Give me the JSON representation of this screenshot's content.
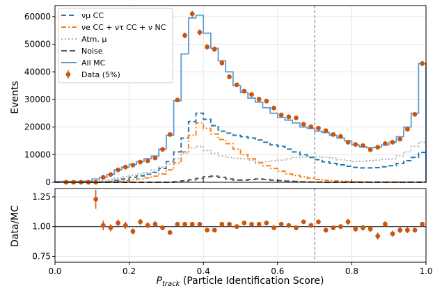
{
  "chart_data": [
    {
      "type": "line",
      "panel": "main",
      "ylabel": "Events",
      "xlim": [
        0,
        1
      ],
      "ylim": [
        0,
        64000
      ],
      "yticks": [
        0,
        10000,
        20000,
        30000,
        40000,
        50000,
        60000
      ],
      "grid": true,
      "legend_placement": "top-left",
      "threshold_line_x": 0.7,
      "colors": {
        "numu": "#1f77b4",
        "nue": "#ff7f0e",
        "atm": "#b0b0b0",
        "noise": "#555555",
        "allmc": "#5b9bd5",
        "data": "#c9550f"
      },
      "legend": [
        {
          "key": "numu",
          "label": "νμ CC",
          "style": "dashed"
        },
        {
          "key": "nue",
          "label": "νe CC + ντ CC + ν NC",
          "style": "dashdot"
        },
        {
          "key": "atm",
          "label": "Atm. μ",
          "style": "dotted"
        },
        {
          "key": "noise",
          "label": "Noise",
          "style": "dashed"
        },
        {
          "key": "allmc",
          "label": "All MC",
          "style": "solid"
        },
        {
          "key": "data",
          "label": "Data (5%)",
          "style": "marker"
        }
      ],
      "bin_edges": [
        0,
        0.02,
        0.04,
        0.06,
        0.08,
        0.1,
        0.12,
        0.14,
        0.16,
        0.18,
        0.2,
        0.22,
        0.24,
        0.26,
        0.28,
        0.3,
        0.32,
        0.34,
        0.36,
        0.38,
        0.4,
        0.42,
        0.44,
        0.46,
        0.48,
        0.5,
        0.52,
        0.54,
        0.56,
        0.58,
        0.6,
        0.62,
        0.64,
        0.66,
        0.68,
        0.7,
        0.72,
        0.74,
        0.76,
        0.78,
        0.8,
        0.82,
        0.84,
        0.86,
        0.88,
        0.9,
        0.92,
        0.94,
        0.96,
        0.98,
        1.0
      ],
      "series": [
        {
          "key": "numu",
          "values": [
            0,
            0,
            0,
            0,
            0,
            0,
            100,
            300,
            700,
            1200,
            1800,
            2300,
            2900,
            3600,
            5000,
            7500,
            11000,
            16000,
            22000,
            25000,
            22800,
            20500,
            18500,
            17800,
            17000,
            16500,
            16000,
            15300,
            14500,
            13500,
            13000,
            12000,
            11000,
            10000,
            9000,
            8200,
            7400,
            6800,
            6300,
            5800,
            5400,
            5200,
            5200,
            5300,
            5600,
            6000,
            6800,
            7800,
            9000,
            10800
          ]
        },
        {
          "key": "nue",
          "values": [
            0,
            0,
            0,
            0,
            0,
            0,
            50,
            150,
            300,
            600,
            900,
            1200,
            1600,
            2200,
            3000,
            4500,
            7000,
            11000,
            17000,
            21500,
            19500,
            17500,
            15500,
            14000,
            12000,
            10000,
            8500,
            7000,
            6000,
            5000,
            4000,
            3000,
            2500,
            2000,
            1500,
            1000,
            700,
            500,
            400,
            300,
            200,
            150,
            100,
            100,
            100,
            100,
            100,
            100,
            100,
            100
          ]
        },
        {
          "key": "atm",
          "values": [
            300,
            300,
            300,
            300,
            400,
            500,
            700,
            1000,
            1500,
            2000,
            2500,
            3000,
            3500,
            4500,
            5500,
            6500,
            8500,
            10500,
            12500,
            13000,
            11500,
            10500,
            9500,
            9000,
            8700,
            8500,
            8000,
            7500,
            7500,
            7800,
            8000,
            8500,
            9000,
            9200,
            9300,
            9300,
            9100,
            8800,
            8200,
            7800,
            7500,
            7600,
            7800,
            8000,
            8300,
            8500,
            9500,
            11000,
            13000,
            14500
          ]
        },
        {
          "key": "noise",
          "values": [
            0,
            0,
            0,
            0,
            0,
            0,
            0,
            0,
            0,
            0,
            0,
            0,
            0,
            0,
            0,
            0,
            200,
            500,
            900,
            1400,
            2000,
            2200,
            1800,
            1200,
            800,
            800,
            1000,
            1200,
            1000,
            800,
            600,
            400,
            300,
            200,
            100,
            50,
            0,
            0,
            0,
            0,
            0,
            0,
            0,
            0,
            0,
            0,
            0,
            0,
            0,
            0
          ]
        },
        {
          "key": "allmc",
          "values": [
            300,
            300,
            300,
            300,
            400,
            1200,
            1800,
            2800,
            4500,
            5500,
            6500,
            7500,
            8500,
            9500,
            12000,
            17000,
            29500,
            46500,
            59500,
            60500,
            54000,
            48500,
            44000,
            40000,
            35000,
            32500,
            30500,
            29000,
            27000,
            25000,
            23500,
            22500,
            21500,
            20000,
            19500,
            18500,
            18000,
            17000,
            16000,
            15000,
            13500,
            12800,
            12500,
            12700,
            13500,
            14500,
            16500,
            20000,
            25000,
            43000
          ]
        },
        {
          "key": "data",
          "x": [
            0.03,
            0.05,
            0.07,
            0.09,
            0.11,
            0.13,
            0.15,
            0.17,
            0.19,
            0.21,
            0.23,
            0.25,
            0.27,
            0.29,
            0.31,
            0.33,
            0.35,
            0.37,
            0.39,
            0.41,
            0.43,
            0.45,
            0.47,
            0.49,
            0.51,
            0.53,
            0.55,
            0.57,
            0.59,
            0.61,
            0.63,
            0.65,
            0.67,
            0.69,
            0.71,
            0.73,
            0.75,
            0.77,
            0.79,
            0.81,
            0.83,
            0.85,
            0.87,
            0.89,
            0.91,
            0.93,
            0.95,
            0.97,
            0.99
          ],
          "y": [
            0,
            0,
            0,
            0,
            0,
            1800,
            2800,
            4500,
            5500,
            6200,
            7300,
            7800,
            8800,
            11900,
            17300,
            29800,
            53200,
            61000,
            54300,
            49000,
            48200,
            43200,
            38200,
            35300,
            33000,
            31800,
            30100,
            29400,
            26900,
            24400,
            23700,
            23300,
            21000,
            20100,
            19600,
            18700,
            17300,
            16600,
            14500,
            13700,
            13300,
            11800,
            12700,
            14000,
            14500,
            15600,
            19200,
            24600,
            43000
          ]
        }
      ]
    },
    {
      "type": "scatter",
      "panel": "ratio",
      "xlabel": "P_track (Particle Identification Score)",
      "ylabel": "Data/MC",
      "xlim": [
        0,
        1
      ],
      "ylim": [
        0.7,
        1.32
      ],
      "yticks": [
        0.75,
        1.0,
        1.25
      ],
      "xticks": [
        0.0,
        0.2,
        0.4,
        0.6,
        0.8,
        1.0
      ],
      "reference_line_y": 1.0,
      "threshold_line_x": 0.7,
      "grid": true,
      "x": [
        0.11,
        0.13,
        0.15,
        0.17,
        0.19,
        0.21,
        0.23,
        0.25,
        0.27,
        0.29,
        0.31,
        0.33,
        0.35,
        0.37,
        0.39,
        0.41,
        0.43,
        0.45,
        0.47,
        0.49,
        0.51,
        0.53,
        0.55,
        0.57,
        0.59,
        0.61,
        0.63,
        0.65,
        0.67,
        0.69,
        0.71,
        0.73,
        0.75,
        0.77,
        0.79,
        0.81,
        0.83,
        0.85,
        0.87,
        0.89,
        0.91,
        0.93,
        0.95,
        0.97,
        0.99
      ],
      "y": [
        1.23,
        1.01,
        0.99,
        1.03,
        1.01,
        0.96,
        1.04,
        1.01,
        1.02,
        0.99,
        0.95,
        1.02,
        1.02,
        1.02,
        1.02,
        0.97,
        0.97,
        1.02,
        1.02,
        1.0,
        1.03,
        1.02,
        1.02,
        1.03,
        0.99,
        1.02,
        1.01,
        0.99,
        1.04,
        1.01,
        1.04,
        0.97,
        0.99,
        1.0,
        1.04,
        0.98,
        0.99,
        0.98,
        0.92,
        1.02,
        0.94,
        0.97,
        0.97,
        0.97,
        1.02
      ],
      "yerr": [
        0.08,
        0.04,
        0.03,
        0.03,
        0.03,
        0.025,
        0.025,
        0.025,
        0.025,
        0.02,
        0.02,
        0.015,
        0.01,
        0.01,
        0.01,
        0.01,
        0.01,
        0.01,
        0.015,
        0.015,
        0.015,
        0.015,
        0.015,
        0.015,
        0.015,
        0.02,
        0.02,
        0.02,
        0.02,
        0.02,
        0.02,
        0.02,
        0.02,
        0.02,
        0.025,
        0.025,
        0.025,
        0.025,
        0.03,
        0.025,
        0.025,
        0.025,
        0.025,
        0.02,
        0.015
      ]
    }
  ]
}
